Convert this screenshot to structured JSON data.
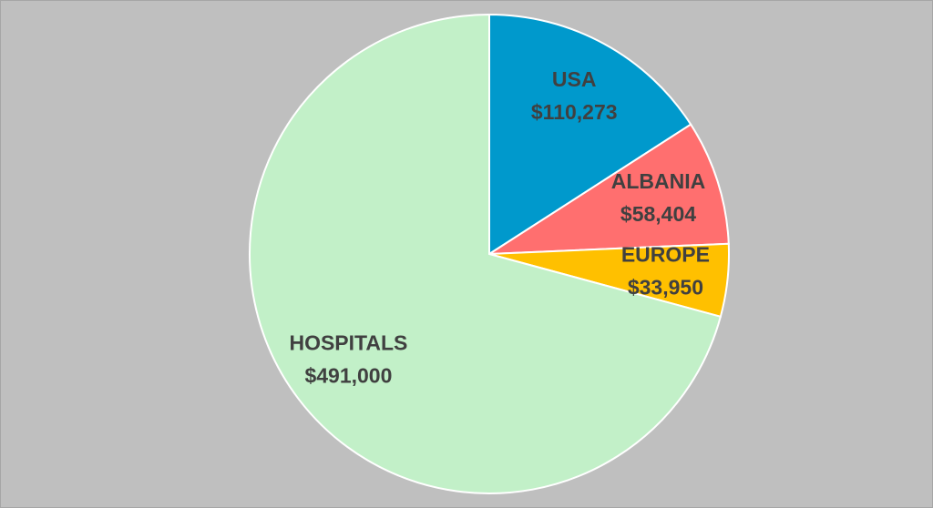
{
  "chart_data": {
    "type": "pie",
    "categories": [
      "USA",
      "ALBANIA",
      "EUROPE",
      "HOSPITALS"
    ],
    "values": [
      110273,
      58404,
      33950,
      491000
    ],
    "value_labels": [
      "$110,273",
      "$58,404",
      "$33,950",
      "$491,000"
    ],
    "colors": [
      "#0099cc",
      "#ff6f6f",
      "#ffc000",
      "#c2f0c8"
    ]
  }
}
